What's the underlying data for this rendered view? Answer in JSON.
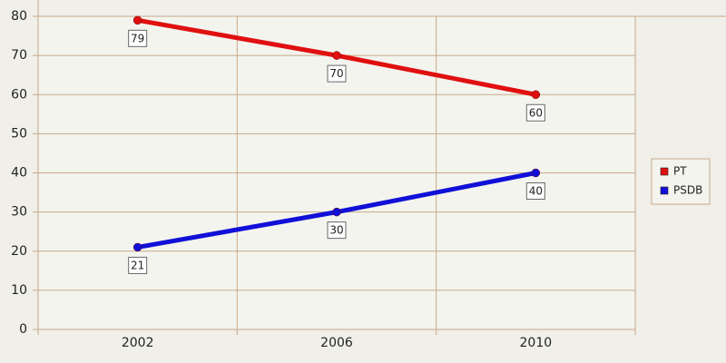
{
  "chart_data": {
    "type": "line",
    "categories": [
      "2002",
      "2006",
      "2010"
    ],
    "series": [
      {
        "name": "PT",
        "color": "#e01010",
        "values": [
          79,
          70,
          60
        ]
      },
      {
        "name": "PSDB",
        "color": "#1010d8",
        "values": [
          21,
          30,
          40
        ]
      }
    ],
    "ylim": [
      0,
      80
    ],
    "yticks": [
      0,
      10,
      20,
      30,
      40,
      50,
      60,
      70,
      80
    ],
    "grid": true,
    "legend": "right"
  }
}
